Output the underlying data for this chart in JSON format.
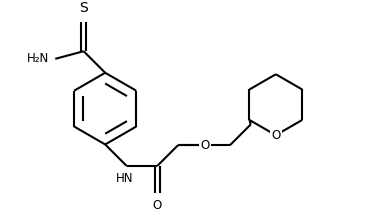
{
  "bg_color": "#ffffff",
  "line_color": "#000000",
  "bond_lw": 1.5,
  "figsize": [
    3.86,
    2.24
  ],
  "dpi": 100,
  "xlim": [
    0,
    10.5
  ],
  "ylim": [
    0,
    6.0
  ]
}
